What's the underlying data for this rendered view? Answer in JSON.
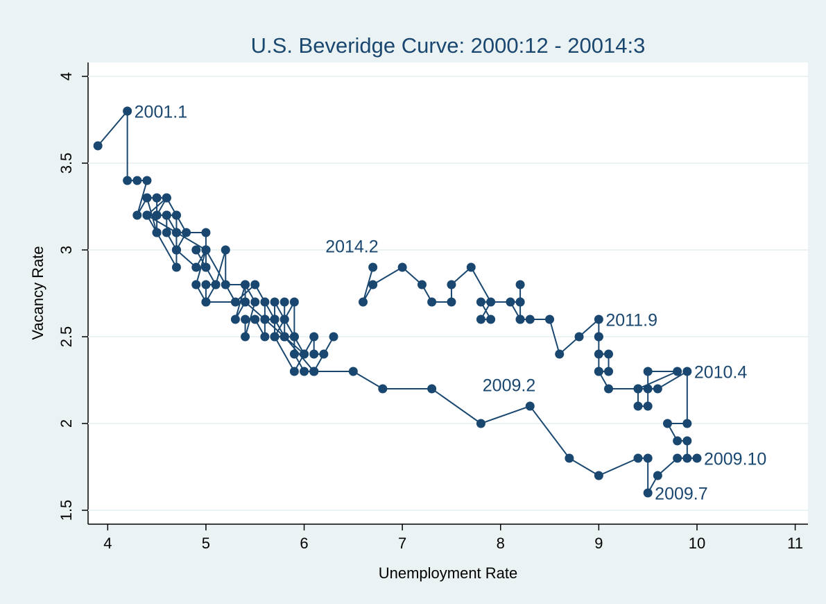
{
  "chart_data": {
    "type": "connected-scatter",
    "title": "U.S. Beveridge Curve: 2000:12 - 20014:3",
    "x_label": "Unemployment Rate",
    "y_label": "Vacancy Rate",
    "color": "#1a476f",
    "grid": true,
    "xlim": [
      3.8,
      11.13
    ],
    "ylim": [
      1.42,
      4.08
    ],
    "xticks": [
      4,
      5,
      6,
      7,
      8,
      9,
      10,
      11
    ],
    "yticks": [
      1.5,
      2,
      2.5,
      3,
      3.5,
      4
    ],
    "x": [
      3.9,
      4.2,
      4.2,
      4.3,
      4.4,
      4.3,
      4.4,
      4.5,
      4.6,
      4.5,
      4.6,
      4.4,
      5.0,
      5.3,
      5.5,
      5.7,
      5.7,
      5.7,
      5.9,
      5.9,
      5.8,
      5.8,
      5.8,
      5.7,
      5.7,
      5.7,
      5.9,
      6.0,
      5.8,
      5.9,
      5.9,
      6.0,
      6.1,
      6.3,
      6.2,
      6.1,
      6.1,
      6.0,
      5.8,
      5.7,
      5.7,
      5.6,
      5.8,
      5.6,
      5.6,
      5.6,
      5.5,
      5.4,
      5.4,
      5.5,
      5.4,
      5.4,
      5.3,
      5.4,
      5.2,
      5.2,
      5.1,
      5.0,
      5.0,
      4.9,
      5.0,
      5.0,
      5.0,
      4.9,
      4.7,
      4.8,
      4.7,
      4.7,
      4.6,
      4.6,
      4.7,
      4.7,
      4.5,
      4.4,
      4.5,
      4.4,
      4.6,
      4.5,
      4.5,
      4.5,
      4.4,
      4.6,
      4.7,
      4.6,
      4.7,
      4.7,
      4.7,
      5.0,
      5.0,
      4.9,
      5.1,
      5.0,
      5.4,
      5.6,
      5.8,
      6.1,
      6.1,
      6.5,
      6.8,
      7.3,
      7.8,
      8.3,
      8.7,
      9.0,
      9.4,
      9.5,
      9.5,
      9.6,
      9.8,
      10.0,
      9.9,
      9.9,
      9.8,
      9.7,
      9.9,
      9.9,
      9.6,
      9.4,
      9.4,
      9.5,
      9.5,
      9.5,
      9.8,
      9.4,
      9.1,
      9.0,
      9.0,
      9.1,
      9.1,
      9.0,
      9.0,
      9.0,
      9.0,
      8.8,
      8.6,
      8.5,
      8.3,
      8.2,
      8.2,
      8.2,
      8.2,
      8.1,
      8.2,
      7.8,
      7.9,
      7.8,
      7.9,
      7.7,
      7.5,
      7.5,
      7.3,
      7.2,
      7.0,
      6.7,
      6.6,
      6.7
    ],
    "y": [
      3.6,
      3.8,
      3.4,
      3.4,
      3.4,
      3.2,
      3.3,
      3.3,
      3.3,
      3.2,
      3.2,
      3.2,
      3.0,
      2.7,
      2.8,
      2.6,
      2.6,
      2.7,
      2.5,
      2.7,
      2.6,
      2.7,
      2.5,
      2.5,
      2.6,
      2.5,
      2.3,
      2.4,
      2.5,
      2.5,
      2.4,
      2.3,
      2.3,
      2.5,
      2.4,
      2.4,
      2.5,
      2.4,
      2.6,
      2.5,
      2.6,
      2.6,
      2.5,
      2.7,
      2.6,
      2.5,
      2.6,
      2.6,
      2.5,
      2.7,
      2.8,
      2.7,
      2.6,
      2.8,
      2.8,
      3.0,
      2.8,
      2.8,
      2.7,
      2.8,
      3.0,
      2.9,
      3.0,
      2.9,
      3.0,
      3.1,
      3.2,
      3.1,
      3.2,
      3.1,
      3.0,
      2.9,
      3.1,
      3.2,
      3.1,
      3.3,
      3.3,
      3.3,
      3.2,
      3.1,
      3.2,
      3.3,
      3.2,
      3.2,
      3.1,
      3.0,
      3.1,
      3.1,
      2.9,
      3.0,
      2.8,
      2.7,
      2.7,
      2.6,
      2.5,
      2.3,
      2.3,
      2.3,
      2.2,
      2.2,
      2.0,
      2.1,
      1.8,
      1.7,
      1.8,
      1.8,
      1.6,
      1.7,
      1.8,
      1.8,
      1.8,
      1.9,
      1.9,
      2.0,
      2.0,
      2.3,
      2.2,
      2.2,
      2.1,
      2.1,
      2.2,
      2.3,
      2.3,
      2.2,
      2.2,
      2.3,
      2.4,
      2.4,
      2.3,
      2.3,
      2.5,
      2.5,
      2.6,
      2.5,
      2.4,
      2.6,
      2.6,
      2.6,
      2.7,
      2.8,
      2.6,
      2.7,
      2.7,
      2.7,
      2.6,
      2.6,
      2.7,
      2.9,
      2.8,
      2.7,
      2.7,
      2.8,
      2.9,
      2.8,
      2.7,
      2.9
    ],
    "annotations": [
      {
        "text": "2001.1",
        "x": 4.2,
        "y": 3.8,
        "position": "right"
      },
      {
        "text": "2014.2",
        "x": 6.7,
        "y": 2.9,
        "position": "top-left"
      },
      {
        "text": "2011.9",
        "x": 9.0,
        "y": 2.6,
        "position": "right"
      },
      {
        "text": "2010.4",
        "x": 9.9,
        "y": 2.3,
        "position": "right"
      },
      {
        "text": "2009.2",
        "x": 8.3,
        "y": 2.1,
        "position": "top-left"
      },
      {
        "text": "2009.10",
        "x": 10.0,
        "y": 1.8,
        "position": "right"
      },
      {
        "text": "2009.7",
        "x": 9.5,
        "y": 1.6,
        "position": "right"
      }
    ]
  }
}
